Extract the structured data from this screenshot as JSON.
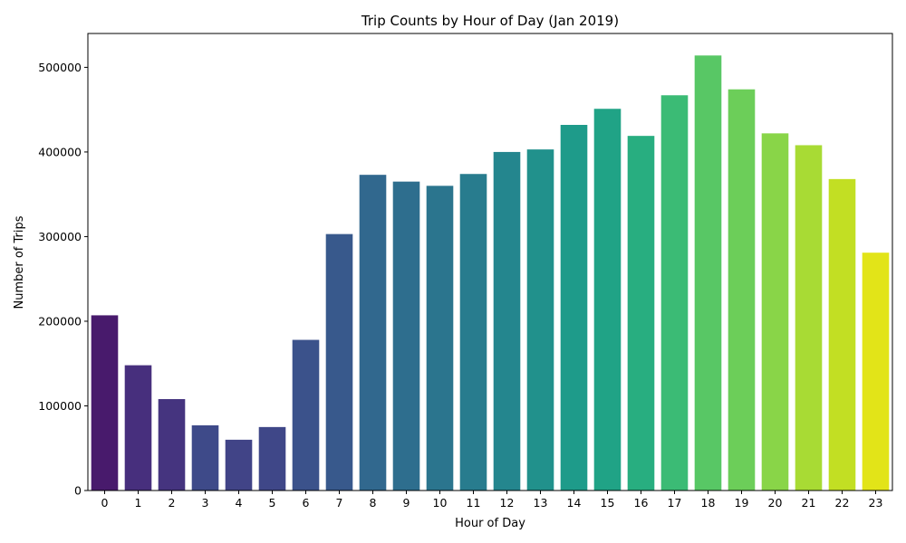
{
  "chart_data": {
    "type": "bar",
    "title": "Trip Counts by Hour of Day (Jan 2019)",
    "xlabel": "Hour of Day",
    "ylabel": "Number of Trips",
    "categories": [
      "0",
      "1",
      "2",
      "3",
      "4",
      "5",
      "6",
      "7",
      "8",
      "9",
      "10",
      "11",
      "12",
      "13",
      "14",
      "15",
      "16",
      "17",
      "18",
      "19",
      "20",
      "21",
      "22",
      "23"
    ],
    "values": [
      207000,
      148000,
      108000,
      77000,
      60000,
      75000,
      178000,
      303000,
      373000,
      365000,
      360000,
      374000,
      400000,
      403000,
      432000,
      451000,
      419000,
      467000,
      514000,
      474000,
      422000,
      408000,
      368000,
      281000
    ],
    "colors": [
      "#481a6c",
      "#472f7d",
      "#45347f",
      "#3e4a89",
      "#414487",
      "#3f4788",
      "#3b528b",
      "#38598c",
      "#31688e",
      "#2e6e8e",
      "#2b758e",
      "#287c8e",
      "#24868e",
      "#21918c",
      "#1e9b8a",
      "#20a386",
      "#28ae80",
      "#3bbb75",
      "#58c765",
      "#6cce59",
      "#89d548",
      "#a8db34",
      "#c2df23",
      "#e2e418"
    ],
    "ylim": [
      0,
      540000
    ],
    "yticks": [
      0,
      100000,
      200000,
      300000,
      400000,
      500000
    ],
    "grid": false,
    "legend": "none"
  }
}
